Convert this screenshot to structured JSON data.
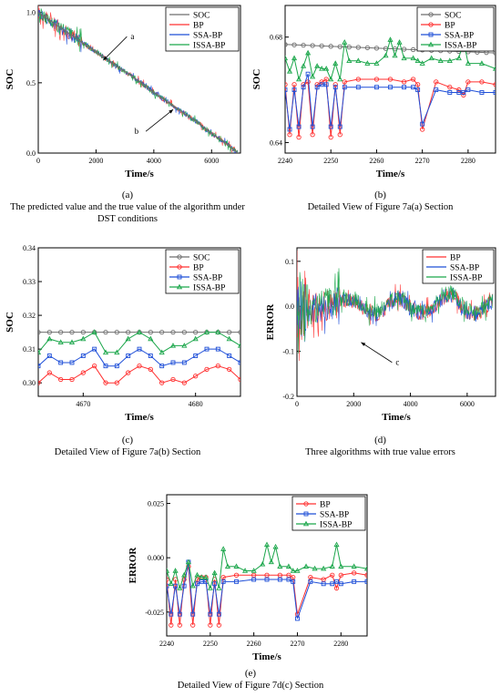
{
  "captions": {
    "a": {
      "letter": "(a)",
      "text": "The predicted value and the true value of the algorithm under DST conditions"
    },
    "b": {
      "letter": "(b)",
      "text": "Detailed View of Figure 7a(a) Section"
    },
    "c": {
      "letter": "(c)",
      "text": "Detailed View of Figure 7a(b) Section"
    },
    "d": {
      "letter": "(d)",
      "text": "Three algorithms with true value errors"
    },
    "e": {
      "letter": "(e)",
      "text": "Detailed View of Figure 7d(c) Section"
    }
  },
  "colors": {
    "SOC": "#6e6e6e",
    "BP": "#ff3030",
    "SSA-BP": "#1f4fd8",
    "ISSA-BP": "#1aa64a"
  },
  "chart_data": [
    {
      "id": "a",
      "type": "line",
      "xlabel": "Time/s",
      "ylabel": "SOC",
      "xlim": [
        0,
        7000
      ],
      "ylim": [
        0.0,
        1.05
      ],
      "xticks": [
        0,
        2000,
        4000,
        6000
      ],
      "yticks": [
        0.0,
        0.5,
        1.0
      ],
      "ytick_labels": [
        "0.0",
        "0.5",
        "1.0"
      ],
      "legend": [
        "SOC",
        "BP",
        "SSA-BP",
        "ISSA-BP"
      ],
      "legend_position": "top-right",
      "annotations": [
        {
          "text": "a",
          "x": 2250,
          "y": 0.66
        },
        {
          "text": "b",
          "x": 4670,
          "y": 0.31
        }
      ],
      "series": [
        {
          "name": "SOC",
          "x": [
            0,
            500,
            1000,
            1500,
            2000,
            2500,
            3000,
            3500,
            4000,
            4500,
            5000,
            5500,
            6000,
            6500,
            6900
          ],
          "y": [
            1.0,
            0.93,
            0.86,
            0.79,
            0.72,
            0.65,
            0.58,
            0.51,
            0.43,
            0.36,
            0.29,
            0.22,
            0.14,
            0.07,
            0.0
          ]
        }
      ]
    },
    {
      "id": "b",
      "type": "line",
      "xlabel": "Time/s",
      "ylabel": "SOC",
      "xlim": [
        2240,
        2286
      ],
      "ylim": [
        0.636,
        0.692
      ],
      "xticks": [
        2240,
        2250,
        2260,
        2270,
        2280
      ],
      "yticks": [
        0.64,
        0.68
      ],
      "ytick_labels": [
        "0.64",
        "0.68"
      ],
      "legend": [
        "SOC",
        "BP",
        "SSA-BP",
        "ISSA-BP"
      ],
      "legend_position": "top-right",
      "series": [
        {
          "name": "SOC",
          "x": [
            2240,
            2286
          ],
          "y": [
            0.6772,
            0.674
          ]
        },
        {
          "name": "BP",
          "x": [
            2240,
            2241,
            2242,
            2243,
            2244,
            2245,
            2246,
            2247,
            2248,
            2249,
            2250,
            2251,
            2252,
            2253,
            2256,
            2260,
            2263,
            2266,
            2268,
            2269,
            2270,
            2273,
            2276,
            2278,
            2279,
            2280,
            2283,
            2286
          ],
          "y": [
            0.662,
            0.643,
            0.662,
            0.642,
            0.662,
            0.663,
            0.643,
            0.662,
            0.663,
            0.664,
            0.642,
            0.662,
            0.643,
            0.663,
            0.664,
            0.664,
            0.664,
            0.663,
            0.664,
            0.662,
            0.645,
            0.663,
            0.661,
            0.66,
            0.658,
            0.663,
            0.663,
            0.662
          ]
        },
        {
          "name": "SSA-BP",
          "x": [
            2240,
            2241,
            2242,
            2243,
            2244,
            2245,
            2246,
            2247,
            2248,
            2249,
            2250,
            2251,
            2252,
            2253,
            2256,
            2260,
            2263,
            2266,
            2268,
            2269,
            2270,
            2273,
            2276,
            2278,
            2279,
            2280,
            2283,
            2286
          ],
          "y": [
            0.66,
            0.645,
            0.66,
            0.646,
            0.661,
            0.666,
            0.646,
            0.661,
            0.662,
            0.662,
            0.646,
            0.661,
            0.646,
            0.661,
            0.661,
            0.661,
            0.661,
            0.661,
            0.661,
            0.66,
            0.647,
            0.66,
            0.659,
            0.659,
            0.659,
            0.66,
            0.659,
            0.659
          ]
        },
        {
          "name": "ISSA-BP",
          "x": [
            2240,
            2241,
            2242,
            2243,
            2244,
            2245,
            2246,
            2247,
            2248,
            2249,
            2250,
            2251,
            2252,
            2253,
            2254,
            2256,
            2258,
            2260,
            2262,
            2263,
            2264,
            2265,
            2266,
            2268,
            2269,
            2270,
            2272,
            2274,
            2276,
            2278,
            2279,
            2280,
            2283,
            2286
          ],
          "y": [
            0.672,
            0.667,
            0.672,
            0.664,
            0.669,
            0.674,
            0.665,
            0.669,
            0.668,
            0.668,
            0.664,
            0.67,
            0.664,
            0.678,
            0.671,
            0.671,
            0.67,
            0.67,
            0.673,
            0.679,
            0.673,
            0.678,
            0.672,
            0.672,
            0.671,
            0.67,
            0.672,
            0.671,
            0.671,
            0.672,
            0.679,
            0.67,
            0.67,
            0.668
          ]
        }
      ]
    },
    {
      "id": "c",
      "type": "line",
      "xlabel": "Time/s",
      "ylabel": "SOC",
      "xlim": [
        4666,
        4684
      ],
      "ylim": [
        0.296,
        0.34
      ],
      "xticks": [
        4670,
        4680
      ],
      "yticks": [
        0.3,
        0.31,
        0.32,
        0.33,
        0.34
      ],
      "ytick_labels": [
        "0.30",
        "0.31",
        "0.32",
        "0.33",
        "0.34"
      ],
      "legend": [
        "SOC",
        "BP",
        "SSA-BP",
        "ISSA-BP"
      ],
      "legend_position": "top-right",
      "series": [
        {
          "name": "SOC",
          "x": [
            4666,
            4667,
            4668,
            4669,
            4670,
            4671,
            4672,
            4673,
            4674,
            4675,
            4676,
            4677,
            4678,
            4679,
            4680,
            4681,
            4682,
            4683,
            4684
          ],
          "y": [
            0.315,
            0.315,
            0.315,
            0.315,
            0.315,
            0.315,
            0.315,
            0.315,
            0.315,
            0.315,
            0.315,
            0.315,
            0.315,
            0.315,
            0.315,
            0.315,
            0.315,
            0.315,
            0.315
          ]
        },
        {
          "name": "BP",
          "x": [
            4666,
            4667,
            4668,
            4669,
            4670,
            4671,
            4672,
            4673,
            4674,
            4675,
            4676,
            4677,
            4678,
            4679,
            4680,
            4681,
            4682,
            4683,
            4684
          ],
          "y": [
            0.3,
            0.303,
            0.301,
            0.301,
            0.303,
            0.305,
            0.3,
            0.3,
            0.303,
            0.305,
            0.304,
            0.3,
            0.301,
            0.3,
            0.302,
            0.304,
            0.305,
            0.304,
            0.301
          ]
        },
        {
          "name": "SSA-BP",
          "x": [
            4666,
            4667,
            4668,
            4669,
            4670,
            4671,
            4672,
            4673,
            4674,
            4675,
            4676,
            4677,
            4678,
            4679,
            4680,
            4681,
            4682,
            4683,
            4684
          ],
          "y": [
            0.305,
            0.308,
            0.306,
            0.306,
            0.308,
            0.31,
            0.305,
            0.305,
            0.308,
            0.31,
            0.308,
            0.305,
            0.306,
            0.306,
            0.308,
            0.31,
            0.31,
            0.308,
            0.306
          ]
        },
        {
          "name": "ISSA-BP",
          "x": [
            4666,
            4667,
            4668,
            4669,
            4670,
            4671,
            4672,
            4673,
            4674,
            4675,
            4676,
            4677,
            4678,
            4679,
            4680,
            4681,
            4682,
            4683,
            4684
          ],
          "y": [
            0.309,
            0.313,
            0.312,
            0.312,
            0.313,
            0.315,
            0.309,
            0.309,
            0.313,
            0.315,
            0.313,
            0.309,
            0.311,
            0.311,
            0.313,
            0.315,
            0.315,
            0.313,
            0.311
          ]
        }
      ]
    },
    {
      "id": "d",
      "type": "line",
      "xlabel": "Time/s",
      "ylabel": "ERROR",
      "xlim": [
        0,
        7000
      ],
      "ylim": [
        -0.2,
        0.13
      ],
      "xticks": [
        0,
        2000,
        4000,
        6000
      ],
      "yticks": [
        -0.2,
        -0.1,
        0.0,
        0.1
      ],
      "ytick_labels": [
        "-0.2",
        "-0.1",
        "0.0",
        "0.1"
      ],
      "legend": [
        "BP",
        "SSA-BP",
        "ISSA-BP"
      ],
      "legend_position": "top-right",
      "annotations": [
        {
          "text": "c",
          "x": 2260,
          "y": -0.08
        }
      ],
      "series": [
        {
          "name": "BP",
          "x": [
            0,
            500,
            1000,
            1500,
            2000,
            2500,
            3000,
            3500,
            4000,
            4500,
            5000,
            5500,
            6000,
            6500,
            6900
          ],
          "y": [
            0.0,
            -0.02,
            0.01,
            0.02,
            0.0,
            -0.01,
            0.0,
            0.01,
            -0.01,
            0.0,
            0.005,
            0.015,
            0.0,
            -0.01,
            0.0
          ]
        },
        {
          "name": "SSA-BP",
          "x": [
            0,
            500,
            1000,
            1500,
            2000,
            2500,
            3000,
            3500,
            4000,
            4500,
            5000,
            5500,
            6000,
            6500,
            6900
          ],
          "y": [
            0.0,
            -0.02,
            0.01,
            0.02,
            0.0,
            -0.01,
            0.0,
            0.01,
            -0.01,
            0.0,
            0.005,
            0.015,
            0.0,
            -0.01,
            0.0
          ]
        },
        {
          "name": "ISSA-BP",
          "x": [
            0,
            500,
            1000,
            1500,
            2000,
            2500,
            3000,
            3500,
            4000,
            4500,
            5000,
            5500,
            6000,
            6500,
            6900
          ],
          "y": [
            0.0,
            -0.02,
            0.015,
            0.025,
            0.0,
            -0.005,
            0.005,
            0.015,
            -0.005,
            0.0,
            0.01,
            0.02,
            0.005,
            -0.005,
            0.0
          ]
        }
      ]
    },
    {
      "id": "e",
      "type": "line",
      "xlabel": "Time/s",
      "ylabel": "ERROR",
      "xlim": [
        2240,
        2286
      ],
      "ylim": [
        -0.036,
        0.029
      ],
      "xticks": [
        2240,
        2250,
        2260,
        2270,
        2280
      ],
      "yticks": [
        -0.025,
        0.0,
        0.025
      ],
      "ytick_labels": [
        "-0.025",
        "0.000",
        "0.025"
      ],
      "legend": [
        "BP",
        "SSA-BP",
        "ISSA-BP"
      ],
      "legend_position": "top-right",
      "series": [
        {
          "name": "BP",
          "x": [
            2240,
            2241,
            2242,
            2243,
            2244,
            2245,
            2246,
            2247,
            2248,
            2249,
            2250,
            2251,
            2252,
            2253,
            2256,
            2260,
            2263,
            2266,
            2268,
            2269,
            2270,
            2273,
            2276,
            2278,
            2279,
            2280,
            2283,
            2286
          ],
          "y": [
            -0.01,
            -0.031,
            -0.01,
            -0.031,
            -0.01,
            -0.004,
            -0.031,
            -0.01,
            -0.009,
            -0.009,
            -0.031,
            -0.01,
            -0.031,
            -0.009,
            -0.008,
            -0.008,
            -0.008,
            -0.008,
            -0.008,
            -0.009,
            -0.026,
            -0.009,
            -0.01,
            -0.008,
            -0.014,
            -0.008,
            -0.007,
            -0.008
          ]
        },
        {
          "name": "SSA-BP",
          "x": [
            2240,
            2241,
            2242,
            2243,
            2244,
            2245,
            2246,
            2247,
            2248,
            2249,
            2250,
            2251,
            2252,
            2253,
            2256,
            2260,
            2263,
            2266,
            2268,
            2269,
            2270,
            2273,
            2276,
            2278,
            2279,
            2280,
            2283,
            2286
          ],
          "y": [
            -0.013,
            -0.026,
            -0.013,
            -0.026,
            -0.013,
            -0.002,
            -0.026,
            -0.012,
            -0.011,
            -0.011,
            -0.026,
            -0.012,
            -0.026,
            -0.011,
            -0.011,
            -0.01,
            -0.01,
            -0.01,
            -0.01,
            -0.011,
            -0.028,
            -0.011,
            -0.012,
            -0.012,
            -0.011,
            -0.012,
            -0.011,
            -0.011
          ]
        },
        {
          "name": "ISSA-BP",
          "x": [
            2240,
            2241,
            2242,
            2243,
            2244,
            2245,
            2246,
            2247,
            2248,
            2249,
            2250,
            2251,
            2252,
            2253,
            2254,
            2256,
            2258,
            2260,
            2262,
            2263,
            2264,
            2265,
            2266,
            2268,
            2269,
            2270,
            2272,
            2274,
            2276,
            2278,
            2279,
            2280,
            2283,
            2286
          ],
          "y": [
            -0.006,
            -0.012,
            -0.006,
            -0.014,
            -0.008,
            -0.002,
            -0.013,
            -0.008,
            -0.009,
            -0.009,
            -0.014,
            -0.007,
            -0.014,
            0.004,
            -0.004,
            -0.004,
            -0.006,
            -0.006,
            -0.003,
            0.006,
            -0.002,
            0.005,
            -0.004,
            -0.004,
            -0.006,
            -0.006,
            -0.004,
            -0.005,
            -0.005,
            -0.004,
            0.006,
            -0.004,
            -0.004,
            -0.005
          ]
        }
      ]
    }
  ]
}
